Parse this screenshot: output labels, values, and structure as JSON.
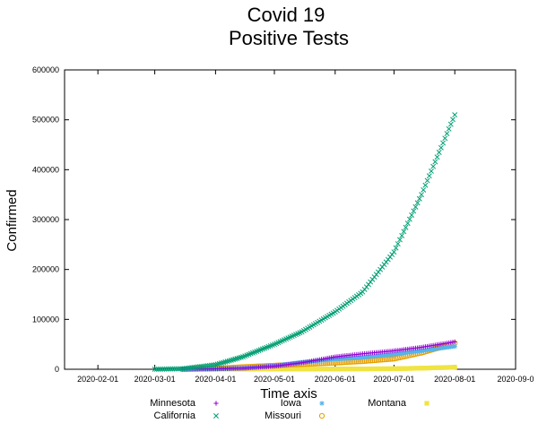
{
  "chart_data": {
    "type": "scatter",
    "title": [
      "Covid 19",
      "Positive Tests"
    ],
    "xlabel": "Time axis",
    "ylabel": "Confirmed",
    "x_ticks": [
      "2020-02-01",
      "2020-03-01",
      "2020-04-01",
      "2020-05-01",
      "2020-06-01",
      "2020-07-01",
      "2020-08-01",
      "2020-09-0"
    ],
    "y_ticks": [
      0,
      100000,
      200000,
      300000,
      400000,
      500000,
      600000
    ],
    "ylim": [
      0,
      600000
    ],
    "xlim": [
      "2020-01-15",
      "2020-09-01"
    ],
    "grid": false,
    "legend_position": "bottom",
    "series": [
      {
        "name": "Minnesota",
        "color": "#9400d3",
        "marker": "plus",
        "points": [
          [
            "2020-03-15",
            200
          ],
          [
            "2020-04-01",
            800
          ],
          [
            "2020-04-15",
            2000
          ],
          [
            "2020-05-01",
            6000
          ],
          [
            "2020-05-15",
            13000
          ],
          [
            "2020-06-01",
            25000
          ],
          [
            "2020-06-15",
            31000
          ],
          [
            "2020-07-01",
            37000
          ],
          [
            "2020-07-15",
            44000
          ],
          [
            "2020-08-01",
            55000
          ]
        ]
      },
      {
        "name": "California",
        "color": "#009e73",
        "marker": "cross",
        "points": [
          [
            "2020-03-01",
            50
          ],
          [
            "2020-03-15",
            1000
          ],
          [
            "2020-04-01",
            9000
          ],
          [
            "2020-04-15",
            25000
          ],
          [
            "2020-05-01",
            50000
          ],
          [
            "2020-05-15",
            75000
          ],
          [
            "2020-06-01",
            115000
          ],
          [
            "2020-06-15",
            155000
          ],
          [
            "2020-07-01",
            235000
          ],
          [
            "2020-07-15",
            350000
          ],
          [
            "2020-08-01",
            510000
          ]
        ]
      },
      {
        "name": "Iowa",
        "color": "#56b4e9",
        "marker": "star",
        "points": [
          [
            "2020-03-15",
            50
          ],
          [
            "2020-04-01",
            500
          ],
          [
            "2020-04-15",
            2000
          ],
          [
            "2020-05-01",
            7000
          ],
          [
            "2020-05-15",
            14000
          ],
          [
            "2020-06-01",
            20000
          ],
          [
            "2020-06-15",
            24000
          ],
          [
            "2020-07-01",
            30000
          ],
          [
            "2020-07-15",
            37000
          ],
          [
            "2020-08-01",
            46000
          ]
        ]
      },
      {
        "name": "Missouri",
        "color": "#e69f00",
        "marker": "circle",
        "points": [
          [
            "2020-03-15",
            50
          ],
          [
            "2020-04-01",
            1500
          ],
          [
            "2020-04-15",
            4500
          ],
          [
            "2020-05-01",
            7500
          ],
          [
            "2020-05-15",
            10000
          ],
          [
            "2020-06-01",
            13000
          ],
          [
            "2020-06-15",
            16000
          ],
          [
            "2020-07-01",
            21000
          ],
          [
            "2020-07-15",
            33000
          ],
          [
            "2020-08-01",
            52000
          ]
        ]
      },
      {
        "name": "Montana",
        "color": "#f0e442",
        "marker": "square",
        "points": [
          [
            "2020-03-15",
            0
          ],
          [
            "2020-04-01",
            200
          ],
          [
            "2020-04-15",
            400
          ],
          [
            "2020-05-01",
            450
          ],
          [
            "2020-05-15",
            480
          ],
          [
            "2020-06-01",
            550
          ],
          [
            "2020-06-15",
            700
          ],
          [
            "2020-07-01",
            1100
          ],
          [
            "2020-07-15",
            2200
          ],
          [
            "2020-08-01",
            4000
          ]
        ]
      }
    ]
  }
}
